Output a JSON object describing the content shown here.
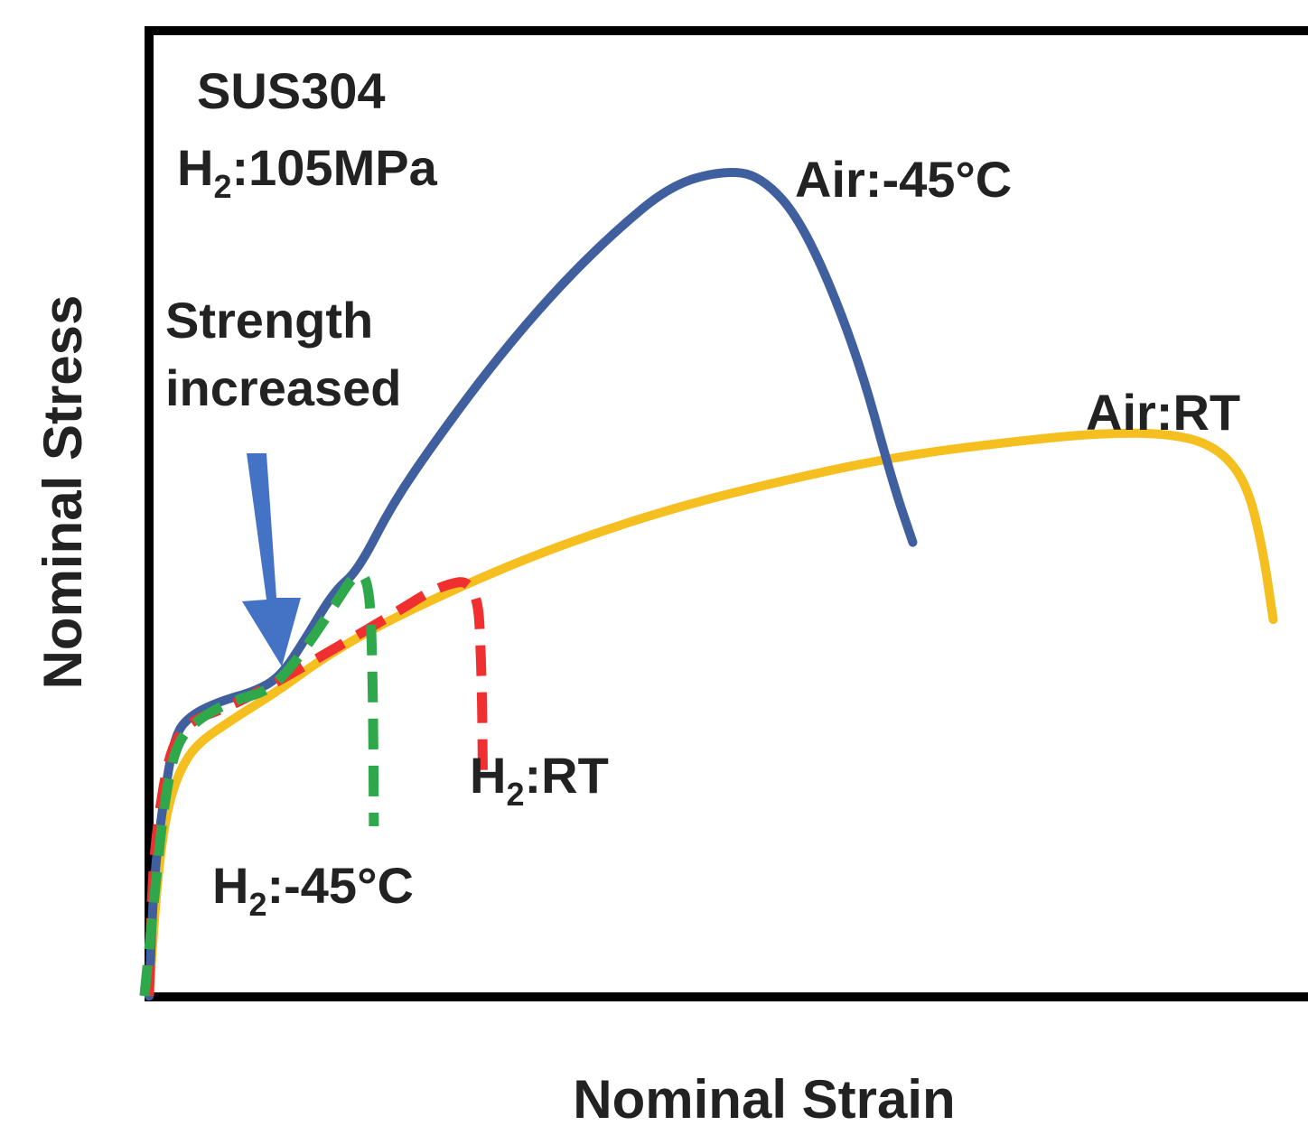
{
  "chart_data": {
    "type": "line",
    "xlabel": "Nominal Strain",
    "ylabel": "Nominal Stress",
    "title": "",
    "axes_show_ticks": false,
    "xlim": [
      0,
      100
    ],
    "ylim": [
      0,
      100
    ],
    "annotations": {
      "material": "SUS304",
      "pressure_prefix": "H",
      "pressure_sub": "2",
      "pressure_rest": ":105MPa",
      "arrow_text_line1": "Strength",
      "arrow_text_line2": "increased"
    },
    "series": [
      {
        "name": "Air:-45°C",
        "label_parts": [
          "Air:-45°C"
        ],
        "color": "#3F5F9F",
        "dash": false,
        "points": [
          [
            0,
            0
          ],
          [
            0.4,
            12
          ],
          [
            1.2,
            20
          ],
          [
            2.2,
            27
          ],
          [
            3.5,
            29
          ],
          [
            6,
            30.5
          ],
          [
            9,
            31.5
          ],
          [
            11.3,
            33
          ],
          [
            13.5,
            37
          ],
          [
            16,
            42
          ],
          [
            18,
            44
          ],
          [
            21,
            51
          ],
          [
            25,
            58
          ],
          [
            30,
            66
          ],
          [
            35,
            73
          ],
          [
            40,
            79
          ],
          [
            45,
            84
          ],
          [
            49.5,
            85.5
          ],
          [
            52.8,
            85
          ],
          [
            56.5,
            80
          ],
          [
            61,
            67
          ],
          [
            64.2,
            53
          ],
          [
            65.9,
            47
          ]
        ]
      },
      {
        "name": "Air:RT",
        "label_parts": [
          "Air:RT"
        ],
        "color": "#F5BF1F",
        "dash": false,
        "points": [
          [
            0,
            0
          ],
          [
            0.7,
            12
          ],
          [
            1.5,
            19
          ],
          [
            2.5,
            23
          ],
          [
            4,
            26
          ],
          [
            7,
            28.5
          ],
          [
            11,
            31.5
          ],
          [
            15,
            35
          ],
          [
            20,
            38.5
          ],
          [
            27,
            42.5
          ],
          [
            35,
            46.5
          ],
          [
            45,
            50.5
          ],
          [
            55,
            53.5
          ],
          [
            65,
            56
          ],
          [
            75,
            57.5
          ],
          [
            82,
            58.3
          ],
          [
            88,
            58.3
          ],
          [
            92,
            57
          ],
          [
            94.6,
            53.5
          ],
          [
            96,
            47
          ],
          [
            97,
            39
          ]
        ]
      },
      {
        "name": "H2:RT",
        "label_parts": [
          "H",
          "2",
          ":RT"
        ],
        "color": "#F03030",
        "dash": true,
        "points": [
          [
            0,
            0
          ],
          [
            0.3,
            13
          ],
          [
            1.1,
            21
          ],
          [
            2,
            26
          ],
          [
            3.5,
            28.5
          ],
          [
            7,
            30
          ],
          [
            11,
            32.5
          ],
          [
            16,
            36
          ],
          [
            21,
            39.5
          ],
          [
            25,
            42.5
          ],
          [
            28.3,
            43.2
          ],
          [
            28.7,
            34
          ],
          [
            28.8,
            22.8
          ]
        ]
      },
      {
        "name": "H2:-45°C",
        "label_parts": [
          "H",
          "2",
          ":-45°C"
        ],
        "color": "#2EA84A",
        "dash": true,
        "points": [
          [
            -0.4,
            0
          ],
          [
            0.6,
            12
          ],
          [
            1.3,
            20
          ],
          [
            2.3,
            26
          ],
          [
            4,
            28.5
          ],
          [
            7,
            30.5
          ],
          [
            10,
            31.5
          ],
          [
            11.5,
            33
          ],
          [
            13.5,
            36
          ],
          [
            16,
            40.5
          ],
          [
            17.9,
            44
          ],
          [
            19,
            43
          ],
          [
            19.3,
            34
          ],
          [
            19.4,
            17.6
          ]
        ]
      }
    ]
  }
}
